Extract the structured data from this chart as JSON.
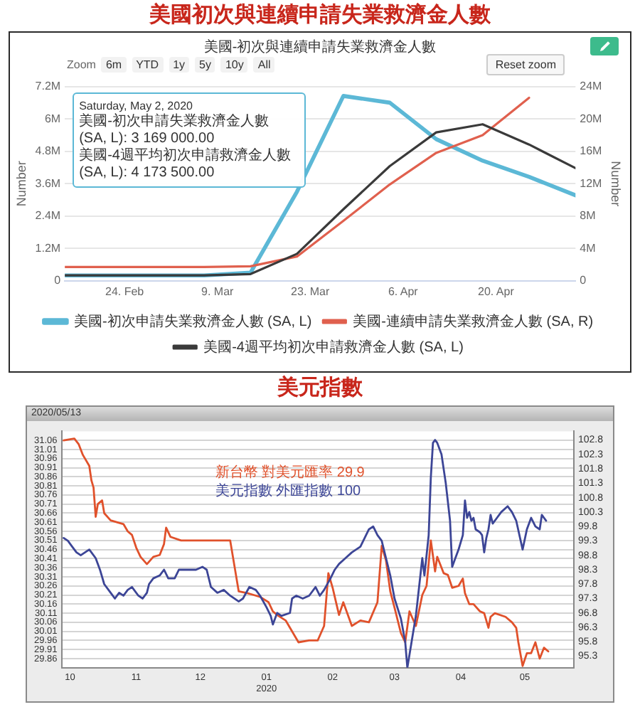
{
  "chart_data": [
    {
      "type": "line",
      "title": "美國初次與連續申請失業救濟金人數",
      "subtitle": "美國-初次與連續申請失業救濟金人數",
      "ylabel": "Number",
      "y2label": "Number",
      "x": [
        "2020-02-15",
        "2020-02-22",
        "2020-02-29",
        "2020-03-07",
        "2020-03-14",
        "2020-03-21",
        "2020-03-28",
        "2020-04-04",
        "2020-04-11",
        "2020-04-18",
        "2020-04-25",
        "2020-05-02"
      ],
      "xlim": [
        "2020-02-15",
        "2020-05-02"
      ],
      "xticks": [
        {
          "value": "2020-02-24",
          "label": "24. Feb"
        },
        {
          "value": "2020-03-09",
          "label": "9. Mar"
        },
        {
          "value": "2020-03-23",
          "label": "23. Mar"
        },
        {
          "value": "2020-04-06",
          "label": "6. Apr"
        },
        {
          "value": "2020-04-20",
          "label": "20. Apr"
        }
      ],
      "ylim": [
        0,
        7200000
      ],
      "yticks": [
        0,
        {
          "value": 1200000,
          "label": "1.2M"
        },
        {
          "value": 2400000,
          "label": "2.4M"
        },
        {
          "value": 3600000,
          "label": "3.6M"
        },
        {
          "value": 4800000,
          "label": "4.8M"
        },
        {
          "value": 6000000,
          "label": "6M"
        },
        {
          "value": 7200000,
          "label": "7.2M"
        }
      ],
      "y2lim": [
        0,
        24000000
      ],
      "y2ticks": [
        0,
        {
          "value": 4000000,
          "label": "4M"
        },
        {
          "value": 8000000,
          "label": "8M"
        },
        {
          "value": 12000000,
          "label": "12M"
        },
        {
          "value": 16000000,
          "label": "16M"
        },
        {
          "value": 20000000,
          "label": "20M"
        },
        {
          "value": 24000000,
          "label": "24M"
        }
      ],
      "series": [
        {
          "name": "美國-初次申請失業救濟金人數 (SA, L)",
          "color": "#5cb8d6",
          "values": [
            200000,
            200000,
            200000,
            200000,
            300000,
            3300000,
            6850000,
            6600000,
            5250000,
            4450000,
            3850000,
            3169000
          ]
        },
        {
          "name": "美國-連續申請失業救濟金人數 (SA, R)",
          "color": "#e0604e",
          "axis": "y2",
          "values": [
            1700000,
            1700000,
            1700000,
            1700000,
            1800000,
            3000000,
            7400000,
            11900000,
            15800000,
            18000000,
            22600000,
            null
          ]
        },
        {
          "name": "美國-4週平均初次申請救濟金人數 (SA, L)",
          "color": "#3a3a3a",
          "values": [
            200000,
            200000,
            200000,
            200000,
            250000,
            1000000,
            2650000,
            4250000,
            5500000,
            5800000,
            5050000,
            4173500
          ]
        }
      ],
      "legend": "bottom",
      "grid": "y",
      "annotations": [
        "Zoom",
        "6m",
        "YTD",
        "1y",
        "5y",
        "10y",
        "All",
        "Reset zoom",
        "Saturday, May 2, 2020",
        "美國-初次申請失業救濟金人數 (SA, L): 3 169 000.00",
        "美國-4週平均初次申請救濟金人數 (SA, L): 4 173 500.00"
      ]
    },
    {
      "type": "line",
      "title": "美元指數",
      "annotations": [
        "2020/05/13"
      ],
      "xlim": [
        "2019-09-27",
        "2020-05-24"
      ],
      "xticks": [
        {
          "value": "2019-10-01",
          "label": "10"
        },
        {
          "value": "2019-11-01",
          "label": "11"
        },
        {
          "value": "2019-12-01",
          "label": "12"
        },
        {
          "value": "2020-01-01",
          "label": "01\n2020"
        },
        {
          "value": "2020-02-01",
          "label": "02"
        },
        {
          "value": "2020-03-01",
          "label": "03"
        },
        {
          "value": "2020-04-01",
          "label": "04"
        },
        {
          "value": "2020-05-01",
          "label": "05"
        }
      ],
      "ylim": [
        29.81,
        31.11
      ],
      "yticks": [
        29.86,
        29.91,
        29.96,
        30.01,
        30.06,
        30.11,
        30.16,
        30.21,
        30.26,
        30.31,
        30.36,
        30.41,
        30.46,
        30.51,
        30.56,
        30.61,
        30.66,
        30.71,
        30.76,
        30.81,
        30.86,
        30.91,
        30.96,
        31.01,
        31.06
      ],
      "y2lim": [
        94.9,
        103.1
      ],
      "y2ticks": [
        95.3,
        95.8,
        96.3,
        96.8,
        97.3,
        97.8,
        98.3,
        98.8,
        99.3,
        99.8,
        100.3,
        100.8,
        101.3,
        101.8,
        102.3,
        102.8
      ],
      "grid": "y",
      "legend": "top",
      "series": [
        {
          "name": "新台幣 對美元匯率 29.9",
          "color": "#e0512b",
          "x": [
            "2019-09-28",
            "2019-10-03",
            "2019-10-05",
            "2019-10-07",
            "2019-10-10",
            "2019-10-11",
            "2019-10-12",
            "2019-10-13",
            "2019-10-14",
            "2019-10-16",
            "2019-10-17",
            "2019-10-20",
            "2019-10-26",
            "2019-10-28",
            "2019-10-30",
            "2019-11-01",
            "2019-11-03",
            "2019-11-06",
            "2019-11-09",
            "2019-11-12",
            "2019-11-14",
            "2019-11-15",
            "2019-11-17",
            "2019-11-22",
            "2019-12-15",
            "2019-12-17",
            "2019-12-19",
            "2019-12-23",
            "2019-12-26",
            "2019-12-29",
            "2020-01-02",
            "2020-01-04",
            "2020-01-06",
            "2020-01-10",
            "2020-01-14",
            "2020-01-16",
            "2020-01-21",
            "2020-01-25",
            "2020-01-28",
            "2020-01-30",
            "2020-02-01",
            "2020-02-02",
            "2020-02-04",
            "2020-02-06",
            "2020-02-10",
            "2020-02-14",
            "2020-02-18",
            "2020-02-22",
            "2020-02-24",
            "2020-02-26",
            "2020-02-28",
            "2020-03-01",
            "2020-03-04",
            "2020-03-06",
            "2020-03-08",
            "2020-03-11",
            "2020-03-14",
            "2020-03-16",
            "2020-03-18",
            "2020-03-20",
            "2020-03-21",
            "2020-03-24",
            "2020-03-26",
            "2020-03-28",
            "2020-03-31",
            "2020-04-02",
            "2020-04-03",
            "2020-04-05",
            "2020-04-07",
            "2020-04-10",
            "2020-04-12",
            "2020-04-14",
            "2020-04-15",
            "2020-04-17",
            "2020-04-22",
            "2020-04-25",
            "2020-04-27",
            "2020-04-28",
            "2020-04-30",
            "2020-05-02",
            "2020-05-04",
            "2020-05-06",
            "2020-05-08",
            "2020-05-10",
            "2020-05-12"
          ],
          "values": [
            31.06,
            31.07,
            31.04,
            30.98,
            30.92,
            30.84,
            30.8,
            30.64,
            30.71,
            30.73,
            30.66,
            30.62,
            30.6,
            30.56,
            30.54,
            30.47,
            30.42,
            30.38,
            30.42,
            30.43,
            30.49,
            30.58,
            30.53,
            30.51,
            30.51,
            30.37,
            30.23,
            30.22,
            30.21,
            30.2,
            30.17,
            30.12,
            30.1,
            30.07,
            29.99,
            29.95,
            29.96,
            29.96,
            30.04,
            30.33,
            30.25,
            30.2,
            30.1,
            30.17,
            30.04,
            30.07,
            30.06,
            30.17,
            30.48,
            30.4,
            30.23,
            30.14,
            30.0,
            29.95,
            30.12,
            30.04,
            30.21,
            30.26,
            30.51,
            30.34,
            30.42,
            30.33,
            30.32,
            30.25,
            30.26,
            30.3,
            30.22,
            30.16,
            30.16,
            30.12,
            30.11,
            30.03,
            30.09,
            30.11,
            30.09,
            30.06,
            30.03,
            29.95,
            29.82,
            29.89,
            29.89,
            29.95,
            29.86,
            29.92,
            29.9
          ]
        },
        {
          "name": "美元指數 外匯指數 100",
          "color": "#3c4596",
          "axis": "y2",
          "x": [
            "2019-09-28",
            "2019-09-30",
            "2019-10-02",
            "2019-10-04",
            "2019-10-06",
            "2019-10-08",
            "2019-10-10",
            "2019-10-13",
            "2019-10-15",
            "2019-10-17",
            "2019-10-20",
            "2019-10-22",
            "2019-10-24",
            "2019-10-26",
            "2019-10-28",
            "2019-10-30",
            "2019-11-02",
            "2019-11-04",
            "2019-11-06",
            "2019-11-07",
            "2019-11-09",
            "2019-11-12",
            "2019-11-14",
            "2019-11-16",
            "2019-11-19",
            "2019-11-21",
            "2019-11-23",
            "2019-11-25",
            "2019-11-27",
            "2019-11-29",
            "2019-12-02",
            "2019-12-04",
            "2019-12-06",
            "2019-12-09",
            "2019-12-12",
            "2019-12-15",
            "2019-12-19",
            "2019-12-21",
            "2019-12-24",
            "2019-12-27",
            "2019-12-29",
            "2020-01-01",
            "2020-01-03",
            "2020-01-04",
            "2020-01-06",
            "2020-01-08",
            "2020-01-12",
            "2020-01-13",
            "2020-01-15",
            "2020-01-18",
            "2020-01-21",
            "2020-01-24",
            "2020-01-26",
            "2020-01-28",
            "2020-01-31",
            "2020-02-02",
            "2020-02-04",
            "2020-02-07",
            "2020-02-10",
            "2020-02-12",
            "2020-02-14",
            "2020-02-16",
            "2020-02-18",
            "2020-02-20",
            "2020-02-22",
            "2020-02-24",
            "2020-02-26",
            "2020-02-28",
            "2020-03-01",
            "2020-03-04",
            "2020-03-06",
            "2020-03-07",
            "2020-03-09",
            "2020-03-11",
            "2020-03-14",
            "2020-03-15",
            "2020-03-17",
            "2020-03-18",
            "2020-03-19",
            "2020-03-20",
            "2020-03-21",
            "2020-03-23",
            "2020-03-25",
            "2020-03-27",
            "2020-03-28",
            "2020-03-29",
            "2020-03-31",
            "2020-04-02",
            "2020-04-03",
            "2020-04-04",
            "2020-04-05",
            "2020-04-06",
            "2020-04-07",
            "2020-04-08",
            "2020-04-10",
            "2020-04-11",
            "2020-04-12",
            "2020-04-13",
            "2020-04-14",
            "2020-04-15",
            "2020-04-16",
            "2020-04-18",
            "2020-04-20",
            "2020-04-23",
            "2020-04-25",
            "2020-04-27",
            "2020-04-30",
            "2020-05-02",
            "2020-05-04",
            "2020-05-06",
            "2020-05-08",
            "2020-05-09",
            "2020-05-10",
            "2020-05-11"
          ],
          "values": [
            99.4,
            99.3,
            99.1,
            98.9,
            98.8,
            98.9,
            99.0,
            98.7,
            98.3,
            97.8,
            97.5,
            97.3,
            97.5,
            97.4,
            97.6,
            97.7,
            97.4,
            97.3,
            97.5,
            97.8,
            98.0,
            98.1,
            98.3,
            98.0,
            98.0,
            98.3,
            98.3,
            98.3,
            98.3,
            98.3,
            98.4,
            98.3,
            97.7,
            97.5,
            97.6,
            97.4,
            97.2,
            97.3,
            97.7,
            97.6,
            97.4,
            97.0,
            96.7,
            96.4,
            96.8,
            96.7,
            96.8,
            97.3,
            97.4,
            97.3,
            97.4,
            97.7,
            97.4,
            97.6,
            98.0,
            98.3,
            98.5,
            98.7,
            98.9,
            99.0,
            99.1,
            99.4,
            99.7,
            99.8,
            99.5,
            99.3,
            98.7,
            98.1,
            97.3,
            96.6,
            95.8,
            94.9,
            95.8,
            96.7,
            98.7,
            98.1,
            99.5,
            101.5,
            102.7,
            102.8,
            102.7,
            102.3,
            101.3,
            100.0,
            98.4,
            98.6,
            99.0,
            99.5,
            100.7,
            100.1,
            100.3,
            100.0,
            100.1,
            99.7,
            99.6,
            99.5,
            98.9,
            99.4,
            99.7,
            100.2,
            99.9,
            100.1,
            100.3,
            100.5,
            100.3,
            100.0,
            99.0,
            99.7,
            100.1,
            99.8,
            99.7,
            100.2,
            100.1,
            100.0
          ]
        }
      ]
    }
  ]
}
